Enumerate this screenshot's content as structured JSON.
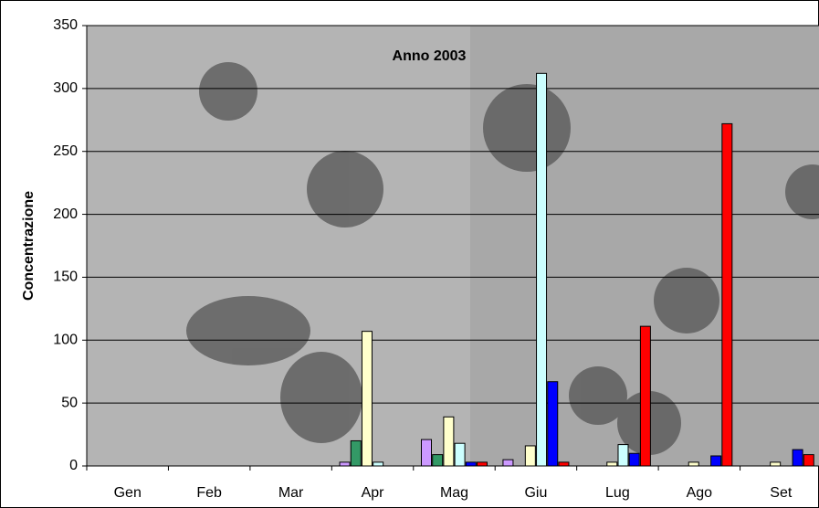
{
  "chart_data": {
    "type": "bar",
    "title": "Anno 2003",
    "y_label": "Concentrazione",
    "categories": [
      "Gen",
      "Feb",
      "Mar",
      "Apr",
      "Mag",
      "Giu",
      "Lug",
      "Ago",
      "Set"
    ],
    "series": [
      {
        "color": "#cc99ff",
        "values": [
          0,
          0,
          0,
          3,
          21,
          5,
          0,
          0,
          0
        ]
      },
      {
        "color": "#339966",
        "values": [
          0,
          0,
          0,
          20,
          9,
          0,
          0,
          0,
          0
        ]
      },
      {
        "color": "#ffffcc",
        "values": [
          0,
          0,
          0,
          107,
          39,
          16,
          3,
          3,
          3
        ]
      },
      {
        "color": "#ccffff",
        "values": [
          0,
          0,
          0,
          3,
          18,
          312,
          17,
          0,
          0
        ]
      },
      {
        "color": "#0000ff",
        "values": [
          0,
          0,
          0,
          0,
          3,
          67,
          10,
          8,
          13
        ]
      },
      {
        "color": "#ff0000",
        "values": [
          0,
          0,
          0,
          0,
          3,
          3,
          111,
          272,
          9
        ]
      }
    ],
    "ylim": [
      0,
      350
    ],
    "yticks": [
      0,
      50,
      100,
      150,
      200,
      250,
      300,
      350
    ],
    "grid": true
  }
}
